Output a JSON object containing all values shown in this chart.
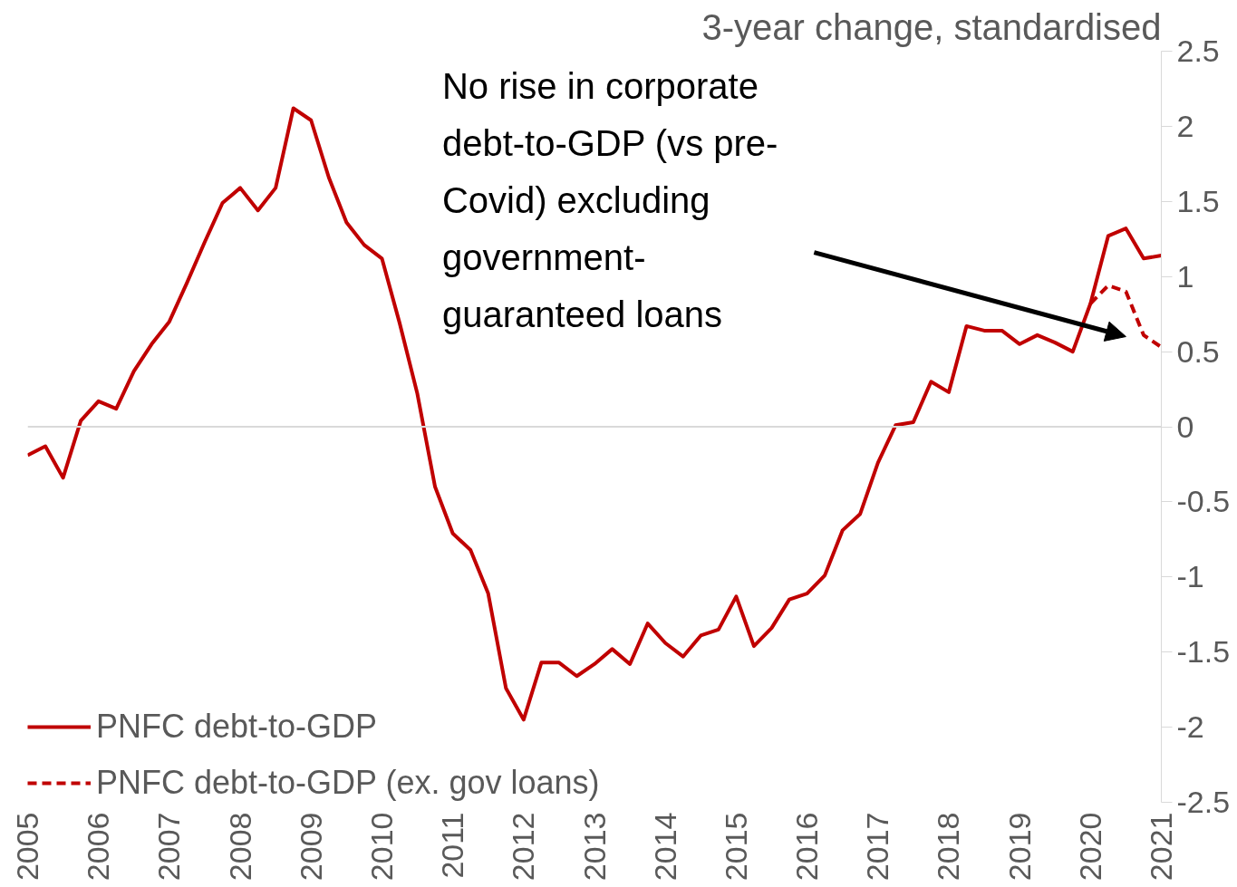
{
  "chart_data": {
    "type": "line",
    "ylabel": "3-year change, standardised",
    "x": [
      2005,
      2005.25,
      2005.5,
      2005.75,
      2006,
      2006.25,
      2006.5,
      2006.75,
      2007,
      2007.25,
      2007.5,
      2007.75,
      2008,
      2008.25,
      2008.5,
      2008.75,
      2009,
      2009.25,
      2009.5,
      2009.75,
      2010,
      2010.25,
      2010.5,
      2010.75,
      2011,
      2011.25,
      2011.5,
      2011.75,
      2012,
      2012.25,
      2012.5,
      2012.75,
      2013,
      2013.25,
      2013.5,
      2013.75,
      2014,
      2014.25,
      2014.5,
      2014.75,
      2015,
      2015.25,
      2015.5,
      2015.75,
      2016,
      2016.25,
      2016.5,
      2016.75,
      2017,
      2017.25,
      2017.5,
      2017.75,
      2018,
      2018.25,
      2018.5,
      2018.75,
      2019,
      2019.25,
      2019.5,
      2019.75,
      2020,
      2020.25,
      2020.5,
      2020.75,
      2021
    ],
    "series": [
      {
        "name": "PNFC debt-to-GDP",
        "color": "#c00000",
        "line_style": "solid",
        "values": [
          -0.19,
          -0.13,
          -0.34,
          0.04,
          0.17,
          0.12,
          0.37,
          0.55,
          0.7,
          0.96,
          1.23,
          1.49,
          1.59,
          1.44,
          1.59,
          2.12,
          2.04,
          1.66,
          1.36,
          1.21,
          1.12,
          0.69,
          0.22,
          -0.4,
          -0.71,
          -0.82,
          -1.11,
          -1.74,
          -1.95,
          -1.57,
          -1.57,
          -1.66,
          -1.58,
          -1.48,
          -1.58,
          -1.31,
          -1.44,
          -1.53,
          -1.39,
          -1.35,
          -1.13,
          -1.46,
          -1.34,
          -1.15,
          -1.11,
          -0.99,
          -0.69,
          -0.58,
          -0.24,
          0.01,
          0.03,
          0.3,
          0.23,
          0.67,
          0.64,
          0.64,
          0.55,
          0.61,
          0.56,
          0.5,
          0.82,
          1.27,
          1.32,
          1.12,
          1.14
        ]
      },
      {
        "name": "PNFC debt-to-GDP (ex. gov loans)",
        "color": "#c00000",
        "line_style": "dashed",
        "x": [
          2020,
          2020.25,
          2020.5,
          2020.75,
          2021
        ],
        "values": [
          0.82,
          0.94,
          0.9,
          0.61,
          0.53
        ]
      }
    ],
    "xlim": [
      2005,
      2021
    ],
    "xticks": [
      2005,
      2006,
      2007,
      2008,
      2009,
      2010,
      2011,
      2012,
      2013,
      2014,
      2015,
      2016,
      2017,
      2018,
      2019,
      2020,
      2021
    ],
    "ylim": [
      -2.5,
      2.5
    ],
    "yticks": [
      -2.5,
      -2,
      -1.5,
      -1,
      -0.5,
      0,
      0.5,
      1,
      1.5,
      2,
      2.5
    ],
    "ref_lines": [
      {
        "axis": "y",
        "value": 0,
        "color": "#d9d9d9"
      }
    ],
    "annotations": [
      "No rise in corporate debt-to-GDP (vs pre-Covid) excluding government-guaranteed loans"
    ],
    "grid": false,
    "legend": "bottom left"
  }
}
